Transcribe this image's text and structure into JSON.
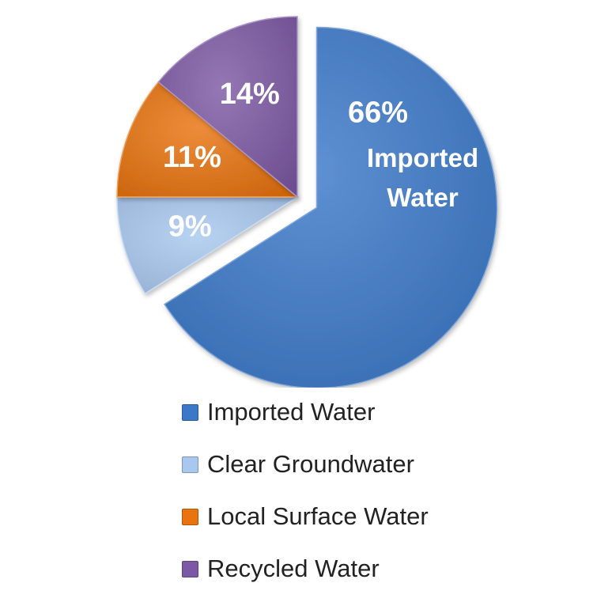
{
  "chart_data": {
    "type": "pie",
    "title": "",
    "exploded_slice": "Imported Water",
    "legend_position": "bottom",
    "slices": [
      {
        "name": "Imported Water",
        "value": 66,
        "label": "66%",
        "inner_label": "Imported Water",
        "color": "#3b78c8"
      },
      {
        "name": "Clear Groundwater",
        "value": 9,
        "label": "9%",
        "color": "#a9c8ef"
      },
      {
        "name": "Local Surface Water",
        "value": 11,
        "label": "11%",
        "color": "#e8730f"
      },
      {
        "name": "Recycled Water",
        "value": 14,
        "label": "14%",
        "color": "#7c59a4"
      }
    ]
  },
  "legend": {
    "items": [
      {
        "label": "Imported Water",
        "color": "#3b78c8"
      },
      {
        "label": "Clear Groundwater",
        "color": "#a9c8ef"
      },
      {
        "label": "Local Surface Water",
        "color": "#e8730f"
      },
      {
        "label": "Recycled Water",
        "color": "#7c59a4"
      }
    ]
  }
}
